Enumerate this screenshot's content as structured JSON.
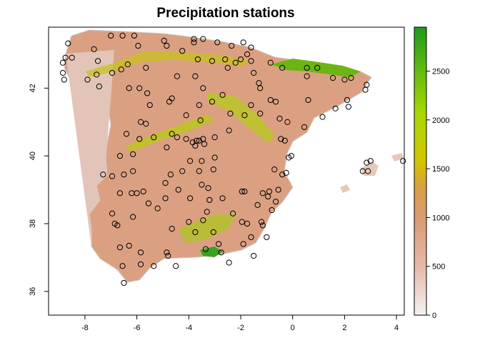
{
  "title": "Precipitation stations",
  "chart_data": {
    "type": "map",
    "title": "Precipitation stations",
    "x_ticks": [
      "-8",
      "-6",
      "-4",
      "-2",
      "0",
      "2",
      "4"
    ],
    "x_tick_values": [
      -8,
      -6,
      -4,
      -2,
      0,
      2,
      4
    ],
    "y_ticks": [
      "36",
      "38",
      "40",
      "42"
    ],
    "y_tick_values": [
      36,
      38,
      40,
      42
    ],
    "xlim": [
      -9.4,
      4.3
    ],
    "ylim": [
      35.3,
      43.8
    ],
    "legend": {
      "placement": "right",
      "ticks": [
        "0",
        "500",
        "1000",
        "1500",
        "2000",
        "2500"
      ],
      "tick_values": [
        0,
        500,
        1000,
        1500,
        2000,
        2500
      ],
      "range": [
        0,
        2950
      ],
      "colors": [
        "#f2f2f2",
        "#e6b8a8",
        "#d99b70",
        "#d9a040",
        "#d4c400",
        "#a8d800",
        "#1e9b1e"
      ]
    },
    "land_color": "#dba082",
    "station_marker": "open-circle",
    "stations": [
      [
        -8.65,
        43.32
      ],
      [
        -7.0,
        43.55
      ],
      [
        -6.55,
        43.55
      ],
      [
        -6.1,
        43.55
      ],
      [
        -4.95,
        43.4
      ],
      [
        -3.8,
        43.45
      ],
      [
        -3.8,
        43.35
      ],
      [
        -3.45,
        43.45
      ],
      [
        -2.9,
        43.35
      ],
      [
        -2.35,
        43.25
      ],
      [
        -1.6,
        43.2
      ],
      [
        -1.9,
        43.35
      ],
      [
        -1.75,
        43.0
      ],
      [
        -2.0,
        42.85
      ],
      [
        -8.5,
        42.9
      ],
      [
        -8.75,
        42.9
      ],
      [
        -8.85,
        42.75
      ],
      [
        -8.85,
        42.45
      ],
      [
        -8.8,
        42.25
      ],
      [
        -7.65,
        43.15
      ],
      [
        -7.5,
        42.8
      ],
      [
        -7.55,
        42.4
      ],
      [
        -7.9,
        42.25
      ],
      [
        -7.45,
        42.05
      ],
      [
        -6.95,
        42.45
      ],
      [
        -6.35,
        42.7
      ],
      [
        -5.65,
        42.6
      ],
      [
        -5.95,
        43.25
      ],
      [
        -4.85,
        43.25
      ],
      [
        -4.25,
        43.1
      ],
      [
        -3.65,
        42.85
      ],
      [
        -3.1,
        42.8
      ],
      [
        -2.6,
        42.85
      ],
      [
        -2.5,
        42.6
      ],
      [
        -2.2,
        42.75
      ],
      [
        -1.6,
        42.8
      ],
      [
        -1.5,
        42.45
      ],
      [
        -0.85,
        42.75
      ],
      [
        -0.4,
        42.6
      ],
      [
        0.55,
        42.6
      ],
      [
        0.55,
        42.35
      ],
      [
        0.95,
        42.6
      ],
      [
        1.55,
        42.3
      ],
      [
        2.0,
        42.25
      ],
      [
        2.25,
        42.3
      ],
      [
        2.85,
        42.1
      ],
      [
        2.8,
        41.95
      ],
      [
        2.1,
        41.65
      ],
      [
        1.65,
        41.4
      ],
      [
        2.15,
        41.45
      ],
      [
        1.15,
        41.15
      ],
      [
        0.6,
        41.65
      ],
      [
        -0.85,
        41.65
      ],
      [
        -0.65,
        41.6
      ],
      [
        -1.6,
        41.5
      ],
      [
        -1.25,
        41.25
      ],
      [
        -0.5,
        41.1
      ],
      [
        -0.2,
        41.0
      ],
      [
        -0.45,
        40.5
      ],
      [
        -0.3,
        40.45
      ],
      [
        -1.85,
        41.2
      ],
      [
        -2.4,
        41.25
      ],
      [
        -2.45,
        40.75
      ],
      [
        -3.0,
        40.55
      ],
      [
        -3.4,
        40.35
      ],
      [
        -3.6,
        40.45
      ],
      [
        -3.45,
        40.5
      ],
      [
        -3.7,
        40.45
      ],
      [
        -3.75,
        40.3
      ],
      [
        -3.85,
        40.4
      ],
      [
        -4.1,
        40.5
      ],
      [
        -4.45,
        40.55
      ],
      [
        -4.65,
        40.65
      ],
      [
        -4.85,
        40.25
      ],
      [
        -4.1,
        41.2
      ],
      [
        -3.6,
        41.5
      ],
      [
        -3.1,
        41.6
      ],
      [
        -2.7,
        41.8
      ],
      [
        -3.45,
        42.0
      ],
      [
        -3.75,
        42.35
      ],
      [
        -4.45,
        42.35
      ],
      [
        -4.75,
        41.6
      ],
      [
        -4.65,
        41.7
      ],
      [
        -5.6,
        41.85
      ],
      [
        -5.9,
        42.0
      ],
      [
        -6.3,
        42.0
      ],
      [
        -6.6,
        42.55
      ],
      [
        -5.5,
        41.5
      ],
      [
        -5.85,
        41.0
      ],
      [
        -6.4,
        40.65
      ],
      [
        -5.65,
        40.95
      ],
      [
        -5.9,
        40.5
      ],
      [
        -5.35,
        40.55
      ],
      [
        -6.15,
        40.05
      ],
      [
        -6.65,
        40.0
      ],
      [
        -6.15,
        39.55
      ],
      [
        -6.5,
        39.45
      ],
      [
        -6.95,
        39.4
      ],
      [
        -7.3,
        39.45
      ],
      [
        -6.0,
        38.9
      ],
      [
        -5.75,
        38.95
      ],
      [
        -6.65,
        38.9
      ],
      [
        -6.2,
        38.9
      ],
      [
        -6.95,
        38.3
      ],
      [
        -6.85,
        38.0
      ],
      [
        -6.15,
        38.2
      ],
      [
        -6.75,
        37.95
      ],
      [
        -6.3,
        37.35
      ],
      [
        -6.65,
        37.3
      ],
      [
        -6.55,
        36.75
      ],
      [
        -6.5,
        36.25
      ],
      [
        -5.85,
        37.15
      ],
      [
        -5.85,
        36.8
      ],
      [
        -5.35,
        36.75
      ],
      [
        -4.85,
        37.15
      ],
      [
        -4.8,
        37.05
      ],
      [
        -4.5,
        36.75
      ],
      [
        -4.65,
        37.85
      ],
      [
        -5.2,
        38.45
      ],
      [
        -5.55,
        38.6
      ],
      [
        -4.9,
        38.75
      ],
      [
        -4.4,
        39.0
      ],
      [
        -4.9,
        39.2
      ],
      [
        -4.7,
        39.45
      ],
      [
        -4.25,
        39.55
      ],
      [
        -3.95,
        39.85
      ],
      [
        -3.6,
        39.55
      ],
      [
        -3.5,
        39.85
      ],
      [
        -3.0,
        39.95
      ],
      [
        -3.05,
        39.6
      ],
      [
        -3.25,
        39.05
      ],
      [
        -3.5,
        39.15
      ],
      [
        -3.95,
        38.75
      ],
      [
        -3.2,
        38.7
      ],
      [
        -3.3,
        38.35
      ],
      [
        -3.45,
        38.1
      ],
      [
        -4.0,
        38.05
      ],
      [
        -3.75,
        37.75
      ],
      [
        -3.05,
        37.75
      ],
      [
        -2.85,
        37.4
      ],
      [
        -3.35,
        37.25
      ],
      [
        -2.75,
        37.15
      ],
      [
        -2.45,
        36.85
      ],
      [
        -1.9,
        37.4
      ],
      [
        -1.5,
        37.05
      ],
      [
        -1.6,
        37.6
      ],
      [
        -1.75,
        38.0
      ],
      [
        -1.2,
        38.05
      ],
      [
        -0.8,
        38.4
      ],
      [
        -1.35,
        38.55
      ],
      [
        -1.85,
        38.95
      ],
      [
        -1.95,
        38.95
      ],
      [
        -1.15,
        38.9
      ],
      [
        -0.95,
        38.8
      ],
      [
        -0.65,
        38.65
      ],
      [
        -0.55,
        39.0
      ],
      [
        -0.4,
        39.45
      ],
      [
        -0.25,
        39.5
      ],
      [
        -0.15,
        39.95
      ],
      [
        -0.05,
        40.0
      ],
      [
        0.45,
        40.85
      ],
      [
        -0.7,
        39.6
      ],
      [
        -0.9,
        38.95
      ],
      [
        2.7,
        39.55
      ],
      [
        2.9,
        39.55
      ],
      [
        3.0,
        39.85
      ],
      [
        2.85,
        39.8
      ],
      [
        4.25,
        39.85
      ],
      [
        -1.95,
        38.05
      ],
      [
        -1.15,
        37.95
      ],
      [
        -1.0,
        37.6
      ],
      [
        -2.3,
        38.3
      ],
      [
        -2.7,
        38.75
      ],
      [
        -3.55,
        41.05
      ],
      [
        -1.25,
        42.0
      ],
      [
        -1.3,
        42.15
      ]
    ]
  }
}
